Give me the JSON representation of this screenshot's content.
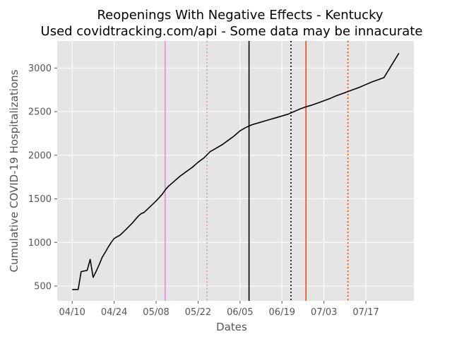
{
  "chart_data": {
    "type": "line",
    "title": "Reopenings With Negative Effects - Kentucky",
    "subtitle": "Used covidtracking.com/api - Some data may be innacurate",
    "xlabel": "Dates",
    "ylabel": "Cumulative COVID-19 Hospitalizations",
    "x_is_date": true,
    "x_tick_labels": [
      "04/10",
      "04/24",
      "05/08",
      "05/22",
      "06/05",
      "06/19",
      "07/03",
      "07/17"
    ],
    "x_tick_dates": [
      "2020-04-10",
      "2020-04-24",
      "2020-05-08",
      "2020-05-22",
      "2020-06-05",
      "2020-06-19",
      "2020-07-03",
      "2020-07-17"
    ],
    "xlim": [
      "2020-04-05",
      "2020-08-02"
    ],
    "ylim": [
      330,
      3310
    ],
    "yticks": [
      500,
      1000,
      1500,
      2000,
      2500,
      3000
    ],
    "grid": true,
    "background": "#e5e5e5",
    "series": [
      {
        "color": "#000000",
        "points": [
          [
            "2020-04-10",
            460
          ],
          [
            "2020-04-12",
            460
          ],
          [
            "2020-04-13",
            665
          ],
          [
            "2020-04-15",
            680
          ],
          [
            "2020-04-16",
            805
          ],
          [
            "2020-04-17",
            600
          ],
          [
            "2020-04-18",
            670
          ],
          [
            "2020-04-19",
            745
          ],
          [
            "2020-04-20",
            830
          ],
          [
            "2020-04-21",
            885
          ],
          [
            "2020-04-22",
            945
          ],
          [
            "2020-04-23",
            1000
          ],
          [
            "2020-04-24",
            1045
          ],
          [
            "2020-04-26",
            1085
          ],
          [
            "2020-04-28",
            1150
          ],
          [
            "2020-04-30",
            1220
          ],
          [
            "2020-05-02",
            1300
          ],
          [
            "2020-05-03",
            1330
          ],
          [
            "2020-05-04",
            1345
          ],
          [
            "2020-05-06",
            1410
          ],
          [
            "2020-05-08",
            1475
          ],
          [
            "2020-05-10",
            1550
          ],
          [
            "2020-05-11",
            1600
          ],
          [
            "2020-05-12",
            1640
          ],
          [
            "2020-05-14",
            1700
          ],
          [
            "2020-05-16",
            1760
          ],
          [
            "2020-05-18",
            1810
          ],
          [
            "2020-05-20",
            1860
          ],
          [
            "2020-05-22",
            1920
          ],
          [
            "2020-05-24",
            1970
          ],
          [
            "2020-05-26",
            2040
          ],
          [
            "2020-05-28",
            2080
          ],
          [
            "2020-05-30",
            2120
          ],
          [
            "2020-06-01",
            2170
          ],
          [
            "2020-06-03",
            2220
          ],
          [
            "2020-06-05",
            2280
          ],
          [
            "2020-06-07",
            2320
          ],
          [
            "2020-06-09",
            2350
          ],
          [
            "2020-06-11",
            2370
          ],
          [
            "2020-06-13",
            2390
          ],
          [
            "2020-06-15",
            2410
          ],
          [
            "2020-06-17",
            2430
          ],
          [
            "2020-06-19",
            2450
          ],
          [
            "2020-06-21",
            2470
          ],
          [
            "2020-06-23",
            2500
          ],
          [
            "2020-06-25",
            2530
          ],
          [
            "2020-06-27",
            2555
          ],
          [
            "2020-06-29",
            2575
          ],
          [
            "2020-07-01",
            2600
          ],
          [
            "2020-07-03",
            2625
          ],
          [
            "2020-07-05",
            2650
          ],
          [
            "2020-07-07",
            2680
          ],
          [
            "2020-07-09",
            2705
          ],
          [
            "2020-07-11",
            2730
          ],
          [
            "2020-07-13",
            2755
          ],
          [
            "2020-07-15",
            2780
          ],
          [
            "2020-07-17",
            2810
          ],
          [
            "2020-07-19",
            2840
          ],
          [
            "2020-07-21",
            2865
          ],
          [
            "2020-07-23",
            2890
          ],
          [
            "2020-07-28",
            3170
          ]
        ]
      }
    ],
    "vlines": [
      {
        "date": "2020-05-11",
        "color": "#ee82ee",
        "style": "solid"
      },
      {
        "date": "2020-05-25",
        "color": "#ee82ee",
        "style": "dotted"
      },
      {
        "date": "2020-06-08",
        "color": "#000000",
        "style": "solid"
      },
      {
        "date": "2020-06-22",
        "color": "#000000",
        "style": "dotted"
      },
      {
        "date": "2020-06-27",
        "color": "#ff4500",
        "style": "solid"
      },
      {
        "date": "2020-07-11",
        "color": "#ff4500",
        "style": "dotted"
      }
    ]
  }
}
